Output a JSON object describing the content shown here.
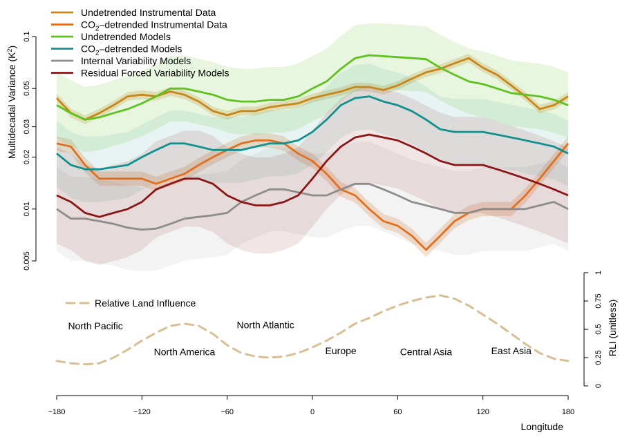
{
  "chart_data": {
    "type": "line",
    "xlabel": "Longitude",
    "ylabel_main": "Multidecadal Variance (K",
    "ylabel_sup": "2",
    "ylabel_end": ")",
    "ylabel_right": "RLI (unitless)",
    "x_ticks": [
      -180,
      -120,
      -60,
      0,
      60,
      120,
      180
    ],
    "y_ticks": [
      0.005,
      0.01,
      0.02,
      0.03,
      0.05,
      0.1
    ],
    "y_tick_labels": [
      "0.005",
      "0.01",
      "0.02",
      "0.03",
      "0.05",
      "0.1"
    ],
    "rli_ticks": [
      0,
      0.25,
      0.5,
      0.75,
      1
    ],
    "rli_tick_labels": [
      "0",
      "0.25",
      "0.5",
      "0.75",
      "1"
    ],
    "xlim": [
      -180,
      180
    ],
    "ylim": [
      0.005,
      0.1
    ],
    "y_scale": "log",
    "legend_position": "top-left",
    "series": [
      {
        "name": "Undetrended Instrumental Data",
        "color": "#C8861A",
        "x": [
          -180,
          -170,
          -160,
          -150,
          -140,
          -130,
          -120,
          -110,
          -100,
          -90,
          -80,
          -70,
          -60,
          -50,
          -40,
          -30,
          -20,
          -10,
          0,
          10,
          20,
          30,
          40,
          50,
          60,
          70,
          80,
          90,
          100,
          110,
          120,
          130,
          140,
          150,
          160,
          170,
          180
        ],
        "values": [
          0.044,
          0.036,
          0.033,
          0.036,
          0.04,
          0.045,
          0.046,
          0.045,
          0.048,
          0.046,
          0.042,
          0.037,
          0.035,
          0.037,
          0.037,
          0.039,
          0.04,
          0.041,
          0.044,
          0.046,
          0.048,
          0.051,
          0.051,
          0.049,
          0.052,
          0.057,
          0.062,
          0.065,
          0.07,
          0.075,
          0.066,
          0.06,
          0.052,
          0.045,
          0.038,
          0.04,
          0.045
        ]
      },
      {
        "name": "CO2–detrended Instrumental Data",
        "color": "#E07020",
        "x": [
          -180,
          -170,
          -160,
          -150,
          -140,
          -130,
          -120,
          -110,
          -100,
          -90,
          -80,
          -70,
          -60,
          -50,
          -40,
          -30,
          -20,
          -10,
          0,
          10,
          20,
          30,
          40,
          50,
          60,
          70,
          80,
          90,
          100,
          110,
          120,
          130,
          140,
          150,
          160,
          170,
          180
        ],
        "values": [
          0.024,
          0.023,
          0.018,
          0.015,
          0.015,
          0.015,
          0.015,
          0.014,
          0.015,
          0.016,
          0.018,
          0.02,
          0.022,
          0.024,
          0.025,
          0.025,
          0.024,
          0.021,
          0.019,
          0.016,
          0.013,
          0.012,
          0.01,
          0.0085,
          0.008,
          0.007,
          0.0058,
          0.007,
          0.0085,
          0.0095,
          0.01,
          0.01,
          0.01,
          0.012,
          0.015,
          0.019,
          0.024
        ]
      },
      {
        "name": "Undetrended Models",
        "color": "#5DC21E",
        "x": [
          -180,
          -170,
          -160,
          -150,
          -140,
          -130,
          -120,
          -110,
          -100,
          -90,
          -80,
          -70,
          -60,
          -50,
          -40,
          -30,
          -20,
          -10,
          0,
          10,
          20,
          30,
          40,
          50,
          60,
          70,
          80,
          90,
          100,
          110,
          120,
          130,
          140,
          150,
          160,
          170,
          180
        ],
        "values": [
          0.04,
          0.036,
          0.033,
          0.034,
          0.036,
          0.038,
          0.041,
          0.045,
          0.05,
          0.05,
          0.048,
          0.046,
          0.043,
          0.042,
          0.042,
          0.043,
          0.043,
          0.045,
          0.05,
          0.055,
          0.065,
          0.075,
          0.078,
          0.077,
          0.076,
          0.075,
          0.074,
          0.066,
          0.06,
          0.055,
          0.053,
          0.05,
          0.047,
          0.046,
          0.045,
          0.043,
          0.04
        ]
      },
      {
        "name": "CO2–detrended Models",
        "color": "#12908E",
        "x": [
          -180,
          -170,
          -160,
          -150,
          -140,
          -130,
          -120,
          -110,
          -100,
          -90,
          -80,
          -70,
          -60,
          -50,
          -40,
          -30,
          -20,
          -10,
          0,
          10,
          20,
          30,
          40,
          50,
          60,
          70,
          80,
          90,
          100,
          110,
          120,
          130,
          140,
          150,
          160,
          170,
          180
        ],
        "values": [
          0.021,
          0.018,
          0.017,
          0.017,
          0.0175,
          0.018,
          0.02,
          0.022,
          0.024,
          0.024,
          0.023,
          0.022,
          0.022,
          0.022,
          0.023,
          0.024,
          0.024,
          0.025,
          0.028,
          0.033,
          0.04,
          0.044,
          0.045,
          0.042,
          0.04,
          0.037,
          0.033,
          0.029,
          0.028,
          0.028,
          0.028,
          0.027,
          0.026,
          0.025,
          0.024,
          0.023,
          0.021
        ]
      },
      {
        "name": "Internal Variability Models",
        "color": "#8C8C8C",
        "x": [
          -180,
          -170,
          -160,
          -150,
          -140,
          -130,
          -120,
          -110,
          -100,
          -90,
          -80,
          -70,
          -60,
          -50,
          -40,
          -30,
          -20,
          -10,
          0,
          10,
          20,
          30,
          40,
          50,
          60,
          70,
          80,
          90,
          100,
          110,
          120,
          130,
          140,
          150,
          160,
          170,
          180
        ],
        "values": [
          0.01,
          0.0088,
          0.0088,
          0.0085,
          0.0082,
          0.0078,
          0.0076,
          0.0077,
          0.0082,
          0.0088,
          0.009,
          0.0092,
          0.0095,
          0.011,
          0.012,
          0.013,
          0.013,
          0.0125,
          0.012,
          0.012,
          0.013,
          0.014,
          0.014,
          0.013,
          0.012,
          0.011,
          0.0105,
          0.01,
          0.0095,
          0.0095,
          0.01,
          0.01,
          0.01,
          0.01,
          0.0105,
          0.011,
          0.01
        ]
      },
      {
        "name": "Residual Forced Variability Models",
        "color": "#8B1414",
        "x": [
          -180,
          -170,
          -160,
          -150,
          -140,
          -130,
          -120,
          -110,
          -100,
          -90,
          -80,
          -70,
          -60,
          -50,
          -40,
          -30,
          -20,
          -10,
          0,
          10,
          20,
          30,
          40,
          50,
          60,
          70,
          80,
          90,
          100,
          110,
          120,
          130,
          140,
          150,
          160,
          170,
          180
        ],
        "values": [
          0.012,
          0.011,
          0.0095,
          0.009,
          0.0095,
          0.01,
          0.011,
          0.013,
          0.014,
          0.015,
          0.015,
          0.014,
          0.012,
          0.011,
          0.0105,
          0.0105,
          0.011,
          0.012,
          0.015,
          0.019,
          0.023,
          0.026,
          0.027,
          0.026,
          0.025,
          0.023,
          0.021,
          0.019,
          0.018,
          0.018,
          0.018,
          0.017,
          0.016,
          0.015,
          0.014,
          0.013,
          0.012
        ]
      },
      {
        "name": "Relative Land Influence",
        "color": "#D9BE94",
        "dashed": true,
        "axis": "right",
        "x": [
          -180,
          -170,
          -160,
          -150,
          -140,
          -130,
          -120,
          -110,
          -100,
          -90,
          -80,
          -70,
          -60,
          -50,
          -40,
          -30,
          -20,
          -10,
          0,
          10,
          20,
          30,
          40,
          50,
          60,
          70,
          80,
          90,
          100,
          110,
          120,
          130,
          140,
          150,
          160,
          170,
          180
        ],
        "values": [
          0.22,
          0.2,
          0.19,
          0.2,
          0.25,
          0.32,
          0.4,
          0.47,
          0.53,
          0.55,
          0.53,
          0.46,
          0.36,
          0.29,
          0.26,
          0.25,
          0.26,
          0.29,
          0.34,
          0.4,
          0.47,
          0.55,
          0.6,
          0.66,
          0.71,
          0.75,
          0.78,
          0.8,
          0.77,
          0.71,
          0.63,
          0.55,
          0.46,
          0.37,
          0.29,
          0.24,
          0.22
        ]
      }
    ],
    "annotations": [
      {
        "text": "North Pacific",
        "x": -172,
        "rli": 0.5
      },
      {
        "text": "North America",
        "x": -90,
        "rli": 0.27
      },
      {
        "text": "North Atlantic",
        "x": -33,
        "rli": 0.51
      },
      {
        "text": "Europe",
        "x": 20,
        "rli": 0.28
      },
      {
        "text": "Central Asia",
        "x": 80,
        "rli": 0.27
      },
      {
        "text": "East Asia",
        "x": 140,
        "rli": 0.28
      }
    ]
  }
}
